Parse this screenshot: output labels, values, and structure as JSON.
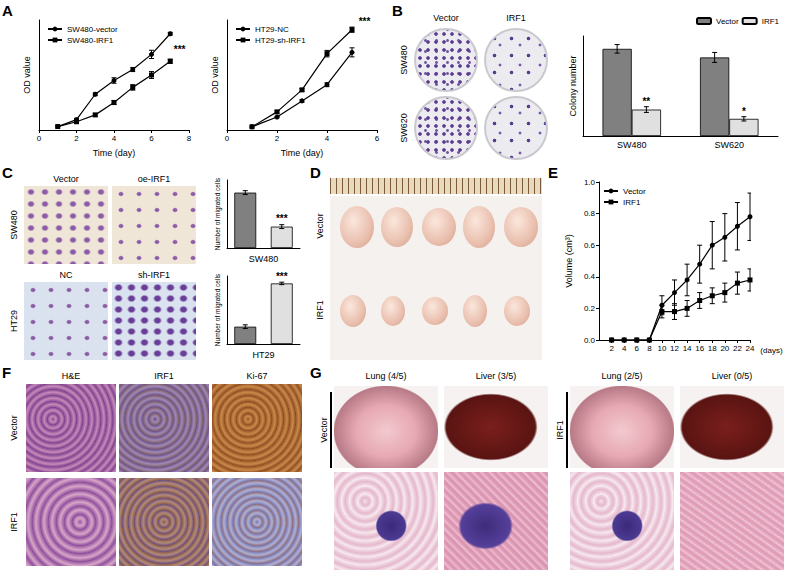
{
  "chart_data": [
    {
      "panel": "A",
      "type": "line",
      "x_label": "Time (day)",
      "y_label": "OD value",
      "x": [
        1,
        2,
        3,
        4,
        5,
        6,
        7
      ],
      "xlim": [
        0,
        8
      ],
      "xticks": [
        0,
        2,
        4,
        6,
        8
      ],
      "ylim": [
        0,
        1.6
      ],
      "tick_labels": "x",
      "grid": false,
      "legend": "upper left",
      "series": [
        {
          "name": "SW480-vector",
          "color": "#000000",
          "marker": "circle",
          "values": [
            0.05,
            0.15,
            0.52,
            0.72,
            0.88,
            1.1,
            1.4
          ],
          "errors": [
            0,
            0.02,
            0.02,
            0.04,
            0.03,
            0.06,
            0.02
          ]
        },
        {
          "name": "SW480-IRF1",
          "color": "#000000",
          "marker": "square",
          "values": [
            0.05,
            0.12,
            0.22,
            0.4,
            0.62,
            0.8,
            1.0
          ],
          "errors": [
            0,
            0.01,
            0.02,
            0.03,
            0.04,
            0.05,
            0.03
          ]
        }
      ],
      "annotations": [
        {
          "text": "***",
          "x": 7.5,
          "y": 1.1
        }
      ]
    },
    {
      "type": "line",
      "x_label": "Time (day)",
      "y_label": "OD value",
      "x": [
        1,
        2,
        3,
        4,
        5
      ],
      "xlim": [
        0,
        6
      ],
      "xticks": [
        0,
        2,
        4,
        6
      ],
      "ylim": [
        0,
        1.7
      ],
      "tick_labels": "x",
      "grid": false,
      "legend": "upper left",
      "series": [
        {
          "name": "HT29-NC",
          "color": "#000000",
          "marker": "circle",
          "values": [
            0.05,
            0.2,
            0.45,
            0.7,
            1.2
          ],
          "errors": [
            0,
            0.01,
            0.02,
            0.03,
            0.07
          ]
        },
        {
          "name": "HT29-sh-IRF1",
          "color": "#000000",
          "marker": "square",
          "values": [
            0.05,
            0.28,
            0.62,
            1.18,
            1.55
          ],
          "errors": [
            0,
            0.02,
            0.02,
            0.05,
            0.04
          ]
        }
      ],
      "annotations": [
        {
          "text": "***",
          "x": 5.5,
          "y": 1.6
        }
      ]
    },
    {
      "type": "bar",
      "y_label": "Colony number",
      "categories": [
        "SW480",
        "SW620"
      ],
      "ylim": [
        0,
        140
      ],
      "tick_labels": "x",
      "grid": false,
      "legend": "upper right",
      "series": [
        {
          "name": "Vector",
          "color": "#808080",
          "values": [
            122,
            110
          ],
          "errors": [
            6,
            7
          ]
        },
        {
          "name": "IRF1",
          "color": "#e0e0e0",
          "values": [
            37,
            24
          ],
          "errors": [
            4,
            3
          ]
        }
      ],
      "annotations": [
        {
          "text": "**",
          "x": 0,
          "y": 42,
          "series": "IRF1"
        },
        {
          "text": "*",
          "x": 1,
          "y": 28,
          "series": "IRF1"
        }
      ]
    },
    {
      "type": "bar",
      "x_label": "SW480",
      "y_label": "Number of migrated cells",
      "categories": [
        null,
        null
      ],
      "values": [
        57,
        22
      ],
      "errors": [
        2,
        2
      ],
      "colors": [
        "#808080",
        "#e0e0e0"
      ],
      "ylim": [
        0,
        70
      ],
      "tick_labels": false,
      "grid": false,
      "annotations": [
        {
          "text": "***",
          "x": 1,
          "y": 25
        }
      ]
    },
    {
      "type": "bar",
      "x_label": "HT29",
      "y_label": "Number of migrated cells",
      "categories": [
        null,
        null
      ],
      "values": [
        28,
        98
      ],
      "errors": [
        3,
        2
      ],
      "colors": [
        "#808080",
        "#e0e0e0"
      ],
      "ylim": [
        0,
        110
      ],
      "tick_labels": false,
      "grid": false,
      "annotations": [
        {
          "text": "***",
          "x": 1,
          "y": 101
        }
      ]
    },
    {
      "panel": "E",
      "type": "line",
      "x_label": "(days)",
      "y_label": "Volume (cm³)",
      "x": [
        2,
        4,
        6,
        8,
        10,
        12,
        14,
        16,
        18,
        20,
        22,
        24
      ],
      "xlim": [
        0,
        24
      ],
      "xticks": [
        2,
        4,
        6,
        8,
        10,
        12,
        14,
        16,
        18,
        20,
        22,
        24
      ],
      "ylim": [
        0,
        1.0
      ],
      "yticks": [
        {
          "value": 0,
          "label": "0.0"
        },
        {
          "value": 0.2,
          "label": "0.2"
        },
        {
          "value": 0.4,
          "label": "0.4"
        },
        {
          "value": 0.6,
          "label": "0.6"
        },
        {
          "value": 0.8,
          "label": "0.8"
        },
        {
          "value": 1.0,
          "label": "1.0"
        }
      ],
      "grid": false,
      "legend": "upper left",
      "series": [
        {
          "name": "Vector",
          "color": "#000000",
          "marker": "circle",
          "values": [
            0,
            0,
            0,
            0,
            0.22,
            0.3,
            0.38,
            0.48,
            0.6,
            0.65,
            0.72,
            0.78
          ],
          "errors": [
            0,
            0,
            0,
            0,
            0.06,
            0.08,
            0.1,
            0.12,
            0.15,
            0.15,
            0.15,
            0.15
          ]
        },
        {
          "name": "IRF1",
          "color": "#000000",
          "marker": "square",
          "values": [
            0,
            0,
            0,
            0,
            0.18,
            0.18,
            0.2,
            0.25,
            0.28,
            0.3,
            0.36,
            0.38
          ],
          "errors": [
            0,
            0,
            0,
            0,
            0.04,
            0.05,
            0.05,
            0.05,
            0.05,
            0.06,
            0.07,
            0.07
          ]
        }
      ]
    }
  ],
  "image_panels": [
    {
      "panel": "B",
      "columns": [
        "Vector",
        "IRF1"
      ],
      "rows": [
        "SW480",
        "SW620"
      ]
    },
    {
      "panel": "C",
      "rows": [
        {
          "label": "SW480",
          "columns": [
            "Vector",
            "oe-IRF1"
          ]
        },
        {
          "label": "HT29",
          "columns": [
            "NC",
            "sh-IRF1"
          ]
        }
      ]
    },
    {
      "panel": "D",
      "rows": [
        "Vector",
        "IRF1"
      ]
    },
    {
      "panel": "F",
      "columns": [
        "H&E",
        "IRF1",
        "Ki-67"
      ],
      "rows": [
        "Vector",
        "IRF1"
      ]
    },
    {
      "panel": "G",
      "groups": [
        {
          "label": "Vector",
          "columns": [
            "Lung (4/5)",
            "Liver (3/5)"
          ]
        },
        {
          "label": "IRF1",
          "columns": [
            "Lung (2/5)",
            "Liver (0/5)"
          ]
        }
      ]
    }
  ]
}
